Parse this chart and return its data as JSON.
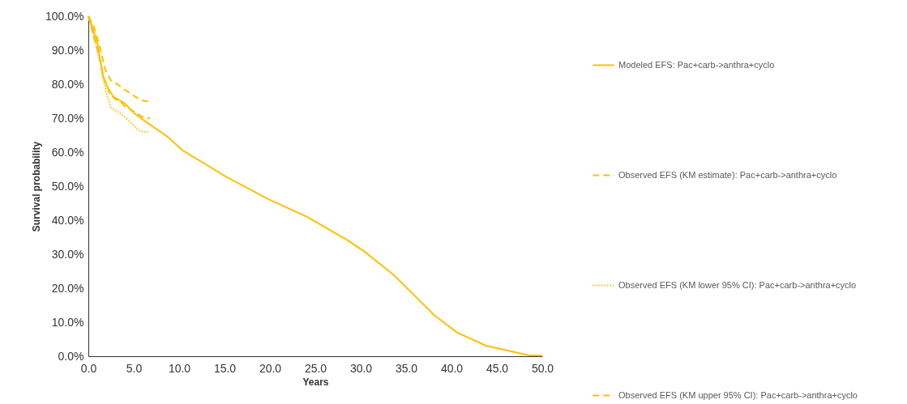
{
  "chart_data": {
    "type": "line",
    "xlabel": "Years",
    "ylabel": "Survival probability",
    "xlim": [
      0,
      50
    ],
    "ylim": [
      0,
      100
    ],
    "xticks": [
      {
        "value": 0,
        "label": "0.0"
      },
      {
        "value": 5,
        "label": "5.0"
      },
      {
        "value": 10,
        "label": "10.0"
      },
      {
        "value": 15,
        "label": "15.0"
      },
      {
        "value": 20,
        "label": "20.0"
      },
      {
        "value": 25,
        "label": "25.0"
      },
      {
        "value": 30,
        "label": "30.0"
      },
      {
        "value": 35,
        "label": "35.0"
      },
      {
        "value": 40,
        "label": "40.0"
      },
      {
        "value": 45,
        "label": "45.0"
      },
      {
        "value": 50,
        "label": "50.0"
      }
    ],
    "yticks": [
      {
        "value": 0,
        "label": "0.0%"
      },
      {
        "value": 10,
        "label": "10.0%"
      },
      {
        "value": 20,
        "label": "20.0%"
      },
      {
        "value": 30,
        "label": "30.0%"
      },
      {
        "value": 40,
        "label": "40.0%"
      },
      {
        "value": 50,
        "label": "50.0%"
      },
      {
        "value": 60,
        "label": "60.0%"
      },
      {
        "value": 70,
        "label": "70.0%"
      },
      {
        "value": 80,
        "label": "80.0%"
      },
      {
        "value": 90,
        "label": "90.0%"
      },
      {
        "value": 100,
        "label": "100.0%"
      }
    ],
    "grid": false,
    "legend": "right",
    "marker": "none",
    "series": [
      {
        "name": "Modeled EFS: Pac+carb->anthra+cyclo",
        "color": "#ffc000",
        "line_style": "solid",
        "x": [
          0,
          0.1,
          1.0,
          1.6,
          2.2,
          2.8,
          3.9,
          5.1,
          6.3,
          8.6,
          10.4,
          15.1,
          19.9,
          24.1,
          28.5,
          30.4,
          33.6,
          38.1,
          40.6,
          43.8,
          48.5,
          50
        ],
        "values": [
          100,
          99.6,
          92,
          82.5,
          78.6,
          76.2,
          74.6,
          71.4,
          69,
          64.8,
          60.5,
          52.9,
          46.1,
          41,
          34.2,
          30.8,
          24,
          12.1,
          7,
          3.1,
          0.3,
          0.2
        ]
      },
      {
        "name": "Observed EFS (KM estimate): Pac+carb->anthra+cyclo",
        "color": "#ffc000",
        "line_style": "dashed",
        "x": [
          0,
          0.5,
          1.2,
          1.8,
          2.4,
          3.0,
          3.5,
          4.0,
          5.0,
          6.2,
          6.8
        ],
        "values": [
          100,
          95,
          88,
          81,
          77,
          75.5,
          75,
          73.5,
          72,
          70,
          70
        ]
      },
      {
        "name": "Observed EFS (KM lower 95% CI): Pac+carb->anthra+cyclo",
        "color": "#ffc000",
        "line_style": "dotted",
        "x": [
          0,
          0.5,
          1.3,
          1.9,
          2.5,
          3.2,
          3.9,
          4.6,
          5.4,
          6.0,
          6.8
        ],
        "values": [
          100,
          95,
          86.5,
          78,
          73,
          72,
          70.6,
          69,
          66.7,
          66,
          66
        ]
      },
      {
        "name": "Observed EFS (KM upper 95% CI): Pac+carb->anthra+cyclo",
        "color": "#ffc000",
        "line_style": "dashed",
        "x": [
          0,
          0.6,
          1.25,
          1.9,
          2.5,
          3.2,
          3.9,
          4.8,
          5.7,
          6.3,
          6.8
        ],
        "values": [
          100,
          97,
          91,
          84,
          81,
          80,
          78.6,
          77,
          75.4,
          75,
          75
        ]
      }
    ]
  }
}
